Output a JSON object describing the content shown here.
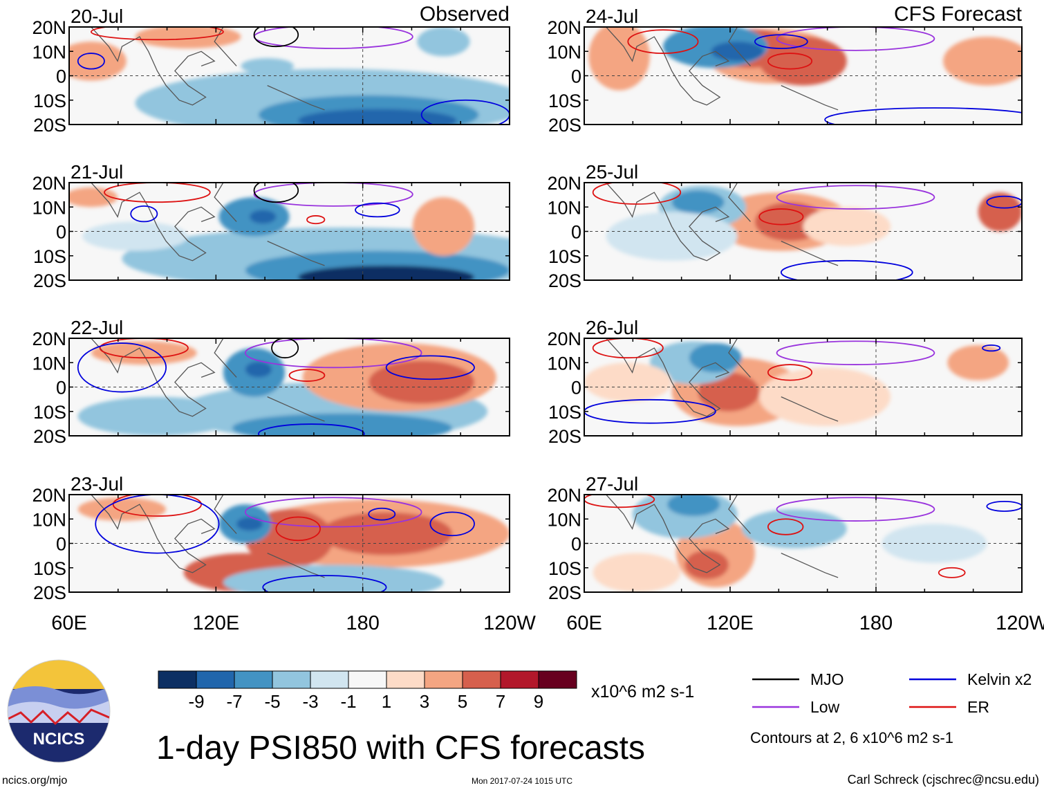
{
  "header": {
    "left_label": "Observed",
    "right_label": "CFS Forecast"
  },
  "panels_left": [
    {
      "date": "20-Jul"
    },
    {
      "date": "21-Jul"
    },
    {
      "date": "22-Jul"
    },
    {
      "date": "23-Jul"
    }
  ],
  "panels_right": [
    {
      "date": "24-Jul"
    },
    {
      "date": "25-Jul"
    },
    {
      "date": "26-Jul"
    },
    {
      "date": "27-Jul"
    }
  ],
  "lat_labels": [
    "20N",
    "10N",
    "0",
    "10S",
    "20S"
  ],
  "lon_labels": [
    "60E",
    "120E",
    "180",
    "120W"
  ],
  "colorbar": {
    "colors": [
      "#0c2f63",
      "#2166ac",
      "#4393c3",
      "#92c5de",
      "#d1e5f0",
      "#f7f7f7",
      "#fddbc7",
      "#f4a582",
      "#d6604d",
      "#b2182b",
      "#67001f"
    ],
    "tick_labels": [
      "-9",
      "-7",
      "-5",
      "-3",
      "-1",
      "1",
      "3",
      "5",
      "7",
      "9"
    ],
    "units": "x10^6 m2 s-1"
  },
  "legend": {
    "items": [
      {
        "label": "MJO",
        "color": "#000000"
      },
      {
        "label": "Kelvin x2",
        "color": "#0000dd"
      },
      {
        "label": "Low",
        "color": "#9933dd"
      },
      {
        "label": "ER",
        "color": "#dd1111"
      }
    ],
    "contour_note": "Contours at 2, 6 x10^6 m2 s-1"
  },
  "logo": {
    "text": "NCICS"
  },
  "title": "1-day PSI850 with CFS forecasts",
  "footer": {
    "left": "ncics.org/mjo",
    "center": "Mon 2017-07-24 1015 UTC",
    "right": "Carl Schreck (cjschrec@ncsu.edu)"
  }
}
